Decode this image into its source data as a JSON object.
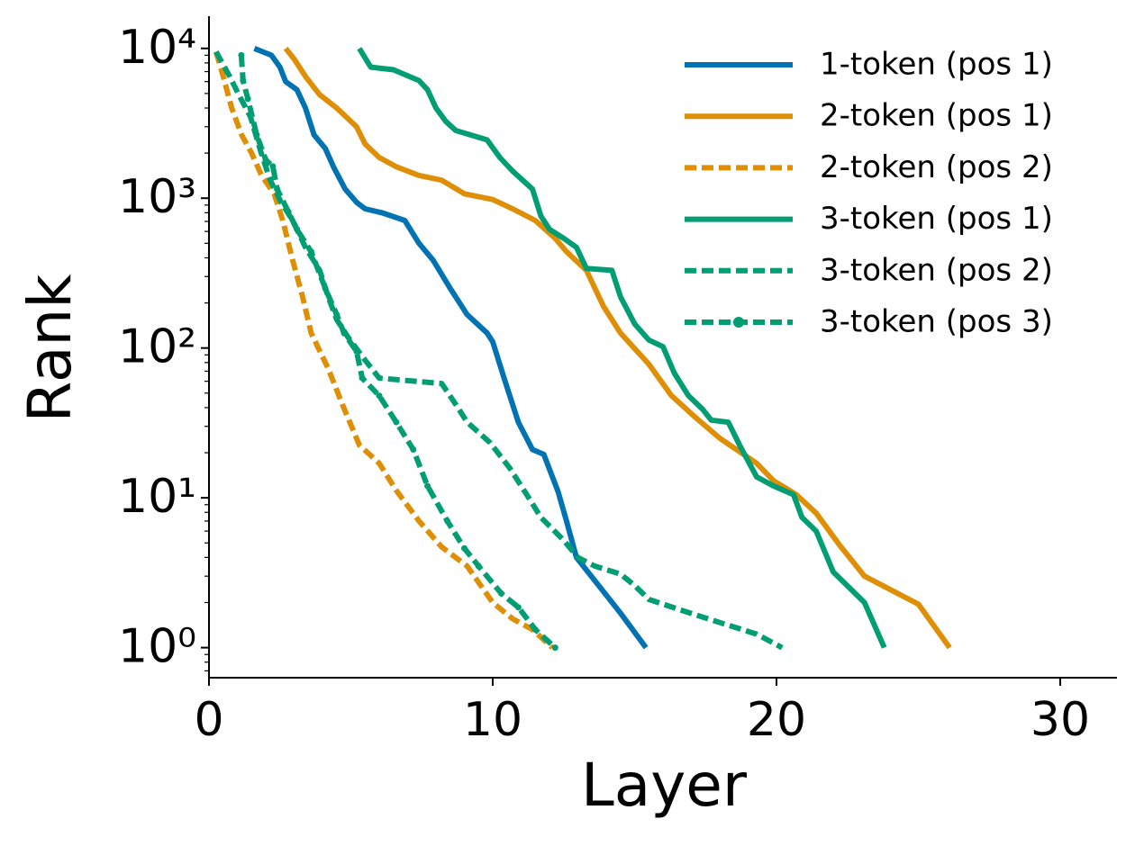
{
  "chart_data": {
    "type": "line",
    "xlabel": "Layer",
    "ylabel": "Rank",
    "xlim": [
      0,
      32
    ],
    "xticks": [
      0,
      10,
      20,
      30
    ],
    "ylim": [
      0.63,
      16400
    ],
    "yscale": "log",
    "yticks": [
      {
        "value": 1,
        "label": "10⁰"
      },
      {
        "value": 10,
        "label": "10¹"
      },
      {
        "value": 100,
        "label": "10²"
      },
      {
        "value": 1000,
        "label": "10³"
      },
      {
        "value": 10000,
        "label": "10⁴"
      }
    ],
    "legend": "upper right",
    "series": [
      {
        "name": "1-token (pos 1)",
        "color": "#0173b2",
        "linestyle": "solid",
        "x": [
          1.6,
          2.2,
          2.5,
          2.7,
          3.1,
          3.4,
          3.7,
          4.1,
          4.4,
          4.8,
          5.2,
          5.5,
          6.1,
          6.9,
          7.4,
          7.9,
          8.5,
          9.1,
          9.8,
          10.0,
          10.4,
          10.9,
          11.4,
          11.8,
          12.3,
          12.6,
          12.95,
          13.6,
          14.5,
          15.4
        ],
        "values": [
          10000,
          9000,
          7500,
          6000,
          5300,
          4000,
          2650,
          2150,
          1600,
          1150,
          940,
          850,
          800,
          710,
          500,
          385,
          250,
          167,
          126,
          110,
          63,
          32,
          21,
          19.5,
          11,
          7,
          4,
          2.8,
          1.7,
          1
        ]
      },
      {
        "name": "2-token (pos 1)",
        "color": "#de8f05",
        "linestyle": "solid",
        "x": [
          2.7,
          3.0,
          3.4,
          3.9,
          4.5,
          5.2,
          5.5,
          6.0,
          6.6,
          7.4,
          8.2,
          9.0,
          10.0,
          10.7,
          11.5,
          12.2,
          12.6,
          13.3,
          13.9,
          14.5,
          15.5,
          16.3,
          17.1,
          18.0,
          19.3,
          19.9,
          20.7,
          21.4,
          22.2,
          23.1,
          25.0,
          26.1
        ],
        "values": [
          10000,
          8500,
          6500,
          4900,
          4000,
          3000,
          2300,
          1870,
          1620,
          1420,
          1320,
          1070,
          980,
          850,
          710,
          540,
          440,
          330,
          190,
          126,
          78,
          48,
          35,
          25,
          17,
          13,
          10.5,
          7.9,
          4.9,
          3.0,
          1.95,
          1
        ]
      },
      {
        "name": "2-token (pos 2)",
        "color": "#de8f05",
        "linestyle": "dashed",
        "x": [
          0.25,
          0.5,
          0.8,
          1.15,
          1.5,
          1.85,
          2.3,
          2.6,
          2.95,
          3.3,
          3.6,
          4.2,
          4.7,
          5.3,
          6.0,
          6.6,
          7.4,
          8.2,
          9.1,
          10.0,
          10.7,
          11.4,
          12.1
        ],
        "values": [
          9500,
          6500,
          4000,
          2650,
          2000,
          1420,
          1070,
          710,
          385,
          220,
          126,
          73,
          42,
          22.5,
          17,
          11.2,
          7,
          4.7,
          3.5,
          2.0,
          1.56,
          1.32,
          1
        ]
      },
      {
        "name": "3-token (pos 1)",
        "color": "#029e73",
        "linestyle": "solid",
        "x": [
          5.3,
          5.7,
          6.5,
          7.4,
          7.7,
          8.0,
          8.35,
          8.7,
          9.8,
          10.25,
          10.7,
          11.4,
          11.7,
          12.0,
          12.5,
          12.95,
          13.3,
          14.2,
          14.5,
          15.0,
          15.5,
          16.0,
          16.4,
          16.9,
          17.4,
          17.7,
          18.3,
          18.7,
          19.3,
          19.9,
          20.6,
          20.9,
          21.4,
          22.0,
          23.1,
          23.8
        ],
        "values": [
          10000,
          7500,
          7200,
          6100,
          5300,
          4000,
          3250,
          2830,
          2450,
          1870,
          1520,
          1150,
          760,
          620,
          540,
          470,
          340,
          330,
          220,
          145,
          113,
          102,
          68,
          48,
          39,
          33,
          32,
          22.5,
          13.8,
          12,
          10.5,
          7.4,
          6,
          3.2,
          2,
          1
        ]
      },
      {
        "name": "3-token (pos 2)",
        "color": "#029e73",
        "linestyle": "dashed",
        "x": [
          0.25,
          0.73,
          1.05,
          1.46,
          1.84,
          2.16,
          2.54,
          2.95,
          3.4,
          3.9,
          4.2,
          4.5,
          4.9,
          5.5,
          6.0,
          6.4,
          8.2,
          8.7,
          9.1,
          9.9,
          10.6,
          11.2,
          11.7,
          12.5,
          13.0,
          13.6,
          14.5,
          15.0,
          15.5,
          16.8,
          18.0,
          19.3,
          20.2
        ],
        "values": [
          9500,
          6500,
          4900,
          3500,
          2000,
          1320,
          940,
          710,
          470,
          330,
          220,
          155,
          118,
          83,
          63,
          62,
          58,
          42,
          32,
          23.4,
          15.8,
          10.5,
          7.4,
          5.2,
          4,
          3.5,
          3.1,
          2.6,
          2.1,
          1.74,
          1.47,
          1.23,
          1
        ]
      },
      {
        "name": "3-token (pos 3)",
        "color": "#029e73",
        "linestyle": "dashed",
        "marker": "o",
        "x": [
          1.14,
          1.2,
          1.37,
          1.68,
          2.0,
          2.25,
          2.4,
          2.8,
          3.1,
          3.6,
          4.1,
          4.5,
          4.76,
          5.2,
          5.4,
          6.0,
          6.6,
          7.2,
          7.7,
          8.4,
          9.0,
          9.5,
          10.3,
          10.9,
          11.5,
          12.2
        ],
        "values": [
          9000,
          6100,
          4600,
          2650,
          1800,
          1630,
          1150,
          810,
          620,
          440,
          250,
          167,
          126,
          95,
          63,
          48,
          32,
          21,
          12,
          7,
          4.6,
          3.5,
          2.3,
          1.86,
          1.32,
          1
        ]
      }
    ]
  }
}
